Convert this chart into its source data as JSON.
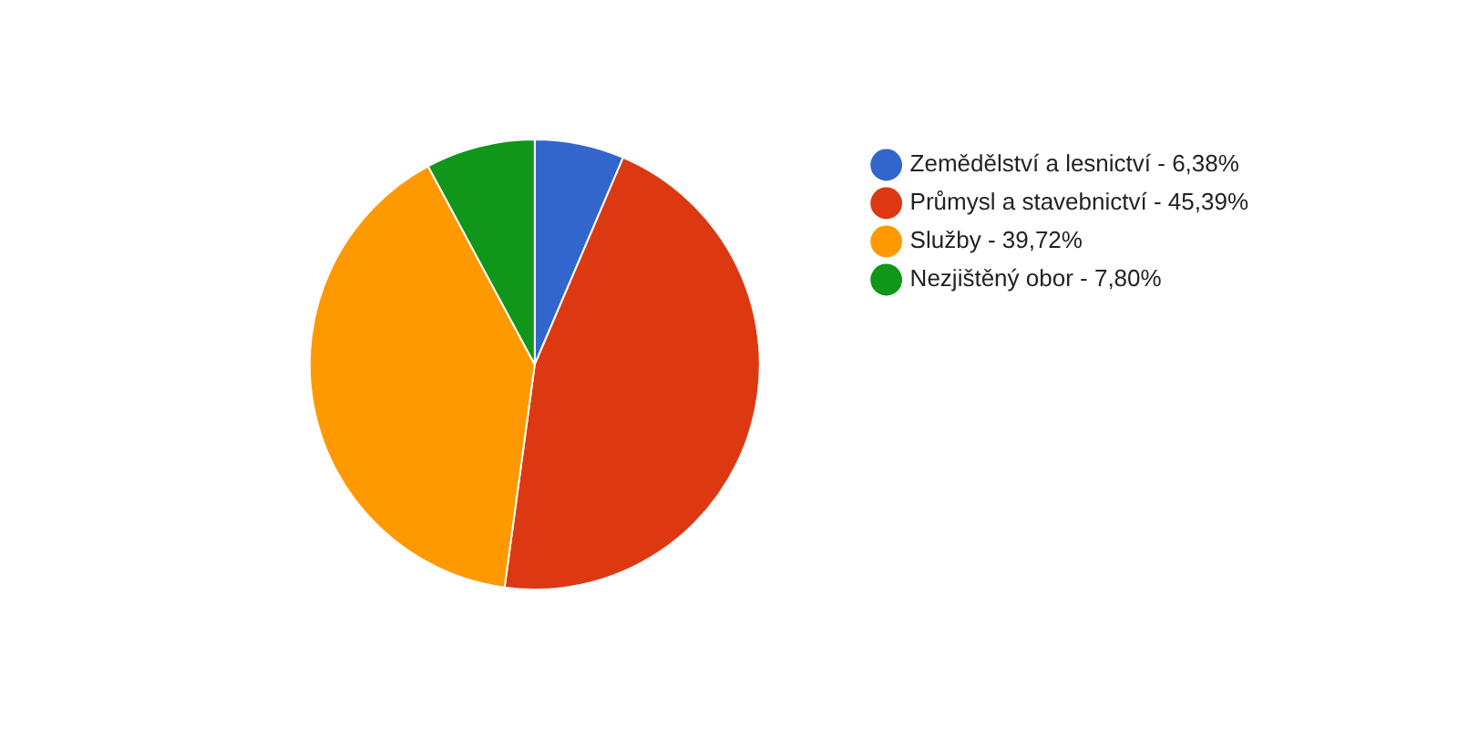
{
  "chart_data": {
    "type": "pie",
    "categories": [
      "Zemědělství a lesnictví - 6,38%",
      "Průmysl a stavebnictví - 45,39%",
      "Služby - 39,72%",
      "Nezjištěný obor - 7,80%"
    ],
    "values": [
      6.38,
      45.39,
      39.72,
      7.8
    ],
    "colors": [
      "#3366cc",
      "#dc3912",
      "#ff9900",
      "#109618"
    ],
    "legend": "right"
  }
}
